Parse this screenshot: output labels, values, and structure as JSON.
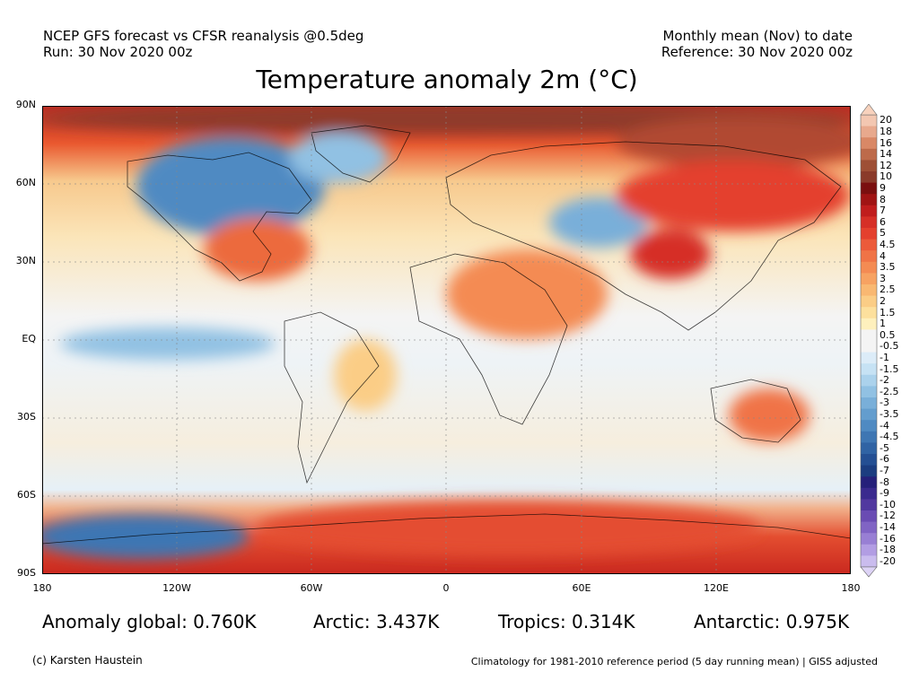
{
  "header": {
    "left_line1": "NCEP GFS forecast vs CFSR reanalysis @0.5deg",
    "left_line2": "Run: 30 Nov 2020 00z",
    "right_line1": "Monthly mean (Nov) to date",
    "right_line2": "Reference: 30 Nov 2020 00z"
  },
  "title": "Temperature anomaly 2m (°C)",
  "map": {
    "lat_labels": [
      "90N",
      "60N",
      "30N",
      "EQ",
      "30S",
      "60S",
      "90S"
    ],
    "lon_labels": [
      "180",
      "120W",
      "60W",
      "0",
      "60E",
      "120E",
      "180"
    ]
  },
  "colorbar": {
    "levels": [
      "20",
      "18",
      "16",
      "14",
      "12",
      "10",
      "9",
      "8",
      "7",
      "6",
      "5",
      "4.5",
      "4",
      "3.5",
      "3",
      "2.5",
      "2",
      "1.5",
      "1",
      "0.5",
      "-0.5",
      "-1",
      "-1.5",
      "-2",
      "-2.5",
      "-3",
      "-3.5",
      "-4",
      "-4.5",
      "-5",
      "-6",
      "-7",
      "-8",
      "-9",
      "-10",
      "-12",
      "-14",
      "-16",
      "-18",
      "-20"
    ],
    "colors": [
      "#f3c7b1",
      "#e8a98d",
      "#d98866",
      "#bd6a4a",
      "#9e4f36",
      "#8a3a2a",
      "#7a0f0f",
      "#a01414",
      "#c01d1d",
      "#d62f27",
      "#e4402e",
      "#ec5a3a",
      "#f07346",
      "#f48b53",
      "#f7a262",
      "#f9b872",
      "#fbcd86",
      "#fde09d",
      "#fef0bd",
      "#f4f4f4",
      "#f4f4f4",
      "#dcecf8",
      "#c6e2f4",
      "#abd2ec",
      "#91c1e3",
      "#79afd9",
      "#639dce",
      "#4f8ac2",
      "#3e76b3",
      "#3063a4",
      "#244f93",
      "#1b3d80",
      "#25207a",
      "#3a2a8e",
      "#51389f",
      "#6a4cb3",
      "#8064c4",
      "#987fd4",
      "#b29de3",
      "#cabcee"
    ],
    "top_arrow_color": "#f8d2bd",
    "bottom_arrow_color": "#ddd3f6"
  },
  "stats": {
    "global": "Anomaly global: 0.760K",
    "arctic": "Arctic: 3.437K",
    "tropics": "Tropics: 0.314K",
    "antarctic": "Antarctic: 0.975K"
  },
  "footer": {
    "left": "(c) Karsten Haustein",
    "right": "Climatology for 1981-2010 reference period (5 day running mean) | GISS adjusted"
  }
}
